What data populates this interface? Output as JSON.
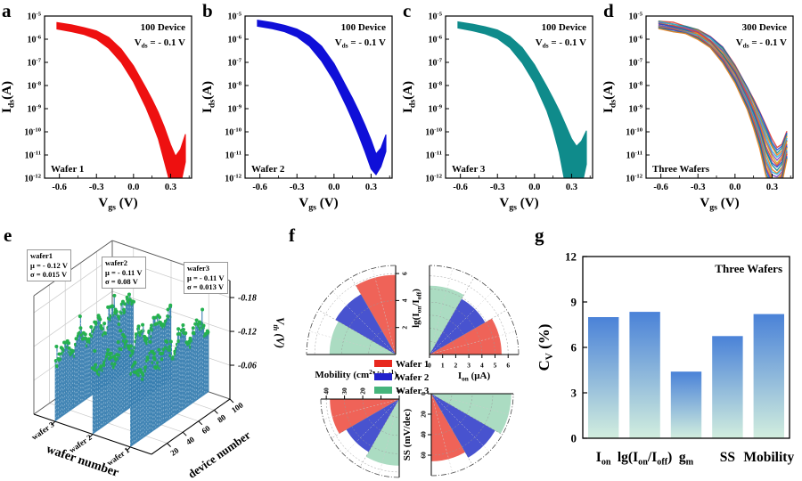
{
  "chart_data": [
    {
      "panel": "a",
      "letter": "a",
      "type": "line",
      "subtype": "transfer-band",
      "color": "#ee1010",
      "device_count": "100 Device",
      "bias": "V_{ds} = - 0.1 V",
      "wafer_label": "Wafer 1",
      "xlabel": "V_{gs} (V)",
      "ylabel": "I_{ds}(A)",
      "x_ticks": [
        "-0.6",
        "-0.3",
        "0.0",
        "0.3"
      ],
      "x_tick_vals": [
        -0.6,
        -0.3,
        0.0,
        0.3
      ],
      "x_minor_vals": [
        -0.45,
        -0.15,
        0.15,
        0.45
      ],
      "y_exponents": [
        -5,
        -6,
        -7,
        -8,
        -9,
        -10,
        -11,
        -12
      ],
      "x_range": [
        -0.72,
        0.47
      ],
      "x": [
        -0.62,
        -0.5,
        -0.4,
        -0.3,
        -0.2,
        -0.1,
        0.0,
        0.1,
        0.15,
        0.2,
        0.25,
        0.3,
        0.34,
        0.38,
        0.42
      ],
      "upper": [
        -5.28,
        -5.38,
        -5.5,
        -5.64,
        -5.92,
        -6.42,
        -7.15,
        -8.1,
        -8.6,
        -9.15,
        -9.8,
        -10.55,
        -11.05,
        -10.75,
        -10.1
      ],
      "lower": [
        -5.56,
        -5.68,
        -5.8,
        -6.0,
        -6.4,
        -7.0,
        -7.85,
        -8.95,
        -9.6,
        -10.3,
        -11.3,
        -12.3,
        -12.5,
        -12.3,
        -11.3
      ]
    },
    {
      "panel": "b",
      "letter": "b",
      "type": "line",
      "subtype": "transfer-band",
      "color": "#0f0fd8",
      "device_count": "100 Device",
      "bias": "V_{ds} = - 0.1 V",
      "wafer_label": "Wafer 2",
      "xlabel": "V_{gs} (V)",
      "ylabel": "I_{ds}(A)",
      "x_ticks": [
        "-0.6",
        "-0.3",
        "0.0",
        "0.3"
      ],
      "x_tick_vals": [
        -0.6,
        -0.3,
        0.0,
        0.3
      ],
      "x_minor_vals": [
        -0.45,
        -0.15,
        0.15,
        0.45
      ],
      "y_exponents": [
        -5,
        -6,
        -7,
        -8,
        -9,
        -10,
        -11,
        -12
      ],
      "x_range": [
        -0.72,
        0.47
      ],
      "x": [
        -0.62,
        -0.5,
        -0.4,
        -0.3,
        -0.2,
        -0.1,
        0.0,
        0.1,
        0.15,
        0.2,
        0.25,
        0.3,
        0.34,
        0.38,
        0.42
      ],
      "upper": [
        -5.18,
        -5.28,
        -5.4,
        -5.56,
        -5.84,
        -6.3,
        -7.05,
        -8.05,
        -8.55,
        -9.1,
        -9.7,
        -10.35,
        -10.95,
        -10.7,
        -10.12
      ],
      "lower": [
        -5.44,
        -5.55,
        -5.68,
        -5.9,
        -6.3,
        -6.95,
        -7.8,
        -8.9,
        -9.5,
        -10.15,
        -10.85,
        -11.6,
        -11.85,
        -11.5,
        -10.85
      ]
    },
    {
      "panel": "c",
      "letter": "c",
      "type": "line",
      "subtype": "transfer-band",
      "color": "#0f8b8b",
      "device_count": "100 Device",
      "bias": "V_{ds} = - 0.1 V",
      "wafer_label": "Wafer 3",
      "xlabel": "V_{gs} (V)",
      "ylabel": "I_{ds}(A)",
      "x_ticks": [
        "-0.6",
        "-0.3",
        "0.0",
        "0.3"
      ],
      "x_tick_vals": [
        -0.6,
        -0.3,
        0.0,
        0.3
      ],
      "x_minor_vals": [
        -0.45,
        -0.15,
        0.15,
        0.45
      ],
      "y_exponents": [
        -5,
        -6,
        -7,
        -8,
        -9,
        -10,
        -11,
        -12
      ],
      "x_range": [
        -0.72,
        0.47
      ],
      "x": [
        -0.62,
        -0.5,
        -0.4,
        -0.3,
        -0.2,
        -0.1,
        0.0,
        0.1,
        0.15,
        0.2,
        0.25,
        0.3,
        0.34,
        0.38,
        0.42
      ],
      "upper": [
        -5.25,
        -5.35,
        -5.46,
        -5.6,
        -5.88,
        -6.36,
        -7.1,
        -8.05,
        -8.55,
        -9.08,
        -9.68,
        -10.3,
        -10.62,
        -10.4,
        -9.95
      ],
      "lower": [
        -5.52,
        -5.64,
        -5.77,
        -5.97,
        -6.37,
        -7.02,
        -7.9,
        -9.1,
        -9.9,
        -10.9,
        -12.3,
        -12.7,
        -12.7,
        -12.4,
        -11.4
      ]
    },
    {
      "panel": "d",
      "letter": "d",
      "type": "line",
      "subtype": "transfer-multi",
      "palette": [
        "#e03c30",
        "#1f48d0",
        "#108a8a",
        "#ef7d1a",
        "#2ab2d8",
        "#7a42c0",
        "#c8a418"
      ],
      "curve_count": 18,
      "device_count": "300 Device",
      "bias": "V_{ds} = - 0.1 V",
      "wafer_label": "Three Wafers",
      "xlabel": "V_{gs} (V)",
      "ylabel": "I_{ds}(A)",
      "x_ticks": [
        "-0.6",
        "-0.3",
        "0.0",
        "0.3"
      ],
      "x_tick_vals": [
        -0.6,
        -0.3,
        0.0,
        0.3
      ],
      "x_minor_vals": [
        -0.45,
        -0.15,
        0.15,
        0.45
      ],
      "y_exponents": [
        -5,
        -6,
        -7,
        -8,
        -9,
        -10,
        -11,
        -12
      ],
      "x_range": [
        -0.72,
        0.47
      ],
      "x": [
        -0.62,
        -0.5,
        -0.4,
        -0.3,
        -0.2,
        -0.1,
        0.0,
        0.1,
        0.15,
        0.2,
        0.25,
        0.3,
        0.34,
        0.38,
        0.42
      ],
      "upper": [
        -5.2,
        -5.3,
        -5.42,
        -5.58,
        -5.86,
        -6.33,
        -7.08,
        -8.06,
        -8.56,
        -9.1,
        -9.7,
        -10.3,
        -10.7,
        -10.5,
        -10.0
      ],
      "lower": [
        -5.55,
        -5.66,
        -5.79,
        -5.99,
        -6.39,
        -7.03,
        -7.9,
        -9.05,
        -9.8,
        -10.7,
        -11.9,
        -12.5,
        -12.5,
        -12.2,
        -11.2
      ]
    },
    {
      "panel": "e",
      "letter": "e",
      "type": "scatter",
      "subtype": "3d-bar-walls",
      "stats": [
        {
          "name": "wafer1",
          "mu": "μ = - 0.12 V",
          "sigma": "σ = 0.015 V"
        },
        {
          "name": "wafer2",
          "mu": "μ = - 0.11 V",
          "sigma": "σ = 0.08 V"
        },
        {
          "name": "wafer3",
          "mu": "μ = - 0.11 V",
          "sigma": "σ = 0.013 V"
        }
      ],
      "zlabel": "V_{th} (V)",
      "z_ticks": [
        "-0.18",
        "-0.12",
        "-0.06"
      ],
      "z_tick_vals": [
        0.18,
        0.12,
        0.06
      ],
      "wafer_axis_label": "wafer number",
      "wafer_ticks": [
        "wafer 1",
        "wafer 2",
        "wafer 3"
      ],
      "device_axis_label": "device number",
      "device_ticks": [
        "20",
        "40",
        "60",
        "80",
        "100"
      ],
      "devices_per_wafer": 100,
      "mu_vals": [
        0.12,
        0.11,
        0.11
      ],
      "bar_color": "#3a80b2",
      "cap_color": "#25b14f"
    },
    {
      "panel": "f",
      "letter": "f",
      "type": "pie",
      "subtype": "quarter-fans",
      "legend": [
        {
          "label": "Wafer 1",
          "color": "#e8281e"
        },
        {
          "label": "Wafer 2",
          "color": "#2222cc"
        },
        {
          "label": "Wafer 3",
          "color": "#46b57c"
        }
      ],
      "sector_colors": [
        "#ef6358",
        "#4853cf",
        "#abdcc2"
      ],
      "charts": [
        {
          "metric": "lg(I_{on}/I_{off})",
          "ticks": [
            "2",
            "4",
            "6"
          ],
          "tick_vals": [
            2,
            4,
            6
          ],
          "axis_max": 6.6,
          "values": [
            5.9,
            5.15,
            4.9
          ]
        },
        {
          "metric": "I_{on} (μA)",
          "ticks": [
            "0",
            "1",
            "2",
            "3",
            "4",
            "5",
            "6"
          ],
          "tick_vals": [
            0,
            1,
            2,
            3,
            4,
            5,
            6
          ],
          "axis_max": 6.8,
          "values": [
            5.5,
            4.9,
            5.25
          ]
        },
        {
          "metric": "Mobility (cm^{2}V^{-1}s^{-1})",
          "ticks": [
            "40",
            "30",
            "20",
            "10",
            "0"
          ],
          "tick_vals": [
            40,
            30,
            20,
            10,
            0
          ],
          "axis_max": 43,
          "values": [
            38,
            33.5,
            36.5
          ]
        },
        {
          "metric": "SS (mV/dec)",
          "ticks": [
            "0",
            "20",
            "40",
            "60"
          ],
          "tick_vals": [
            0,
            20,
            40,
            60
          ],
          "axis_max": 80,
          "values": [
            66,
            72,
            78
          ]
        }
      ]
    },
    {
      "panel": "g",
      "letter": "g",
      "type": "bar",
      "categories": [
        "I_{on}",
        "lg(I_{on}/I_{off})",
        "g_{m}",
        "SS",
        "Mobility"
      ],
      "values": [
        8.0,
        8.35,
        4.4,
        6.75,
        8.2
      ],
      "ylabel": "C_{V} (%)",
      "yticks": [
        0,
        3,
        6,
        9,
        12
      ],
      "ylim": [
        0,
        12
      ],
      "annotation": "Three Wafers",
      "bar_gradient_top": "#4a82d8",
      "bar_gradient_bottom": "#d2eede"
    }
  ]
}
